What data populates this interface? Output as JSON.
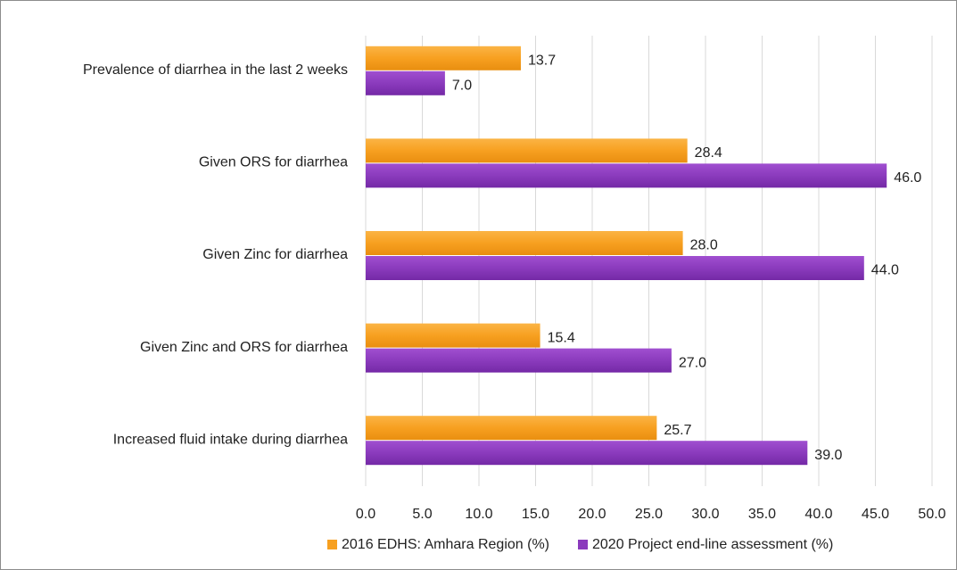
{
  "chart_data": {
    "type": "bar",
    "orientation": "horizontal",
    "categories": [
      "Prevalence of diarrhea in the last 2 weeks",
      "Given ORS for diarrhea",
      "Given Zinc for diarrhea",
      "Given Zinc and ORS for diarrhea",
      "Increased fluid intake during diarrhea"
    ],
    "series": [
      {
        "name": "2016 EDHS: Amhara Region (%)",
        "color": "#f7a020",
        "values": [
          13.7,
          28.4,
          28.0,
          15.4,
          25.7
        ],
        "value_labels": [
          "13.7",
          "28.4",
          "28.0",
          "15.4",
          "25.7"
        ]
      },
      {
        "name": "2020 Project end-line assessment (%)",
        "color": "#8b3bbd",
        "values": [
          7.0,
          46.0,
          44.0,
          27.0,
          39.0
        ],
        "value_labels": [
          "7.0",
          "46.0",
          "44.0",
          "27.0",
          "39.0"
        ]
      }
    ],
    "xlim": [
      0,
      50
    ],
    "xticks": [
      {
        "value": 0,
        "label": "0.0"
      },
      {
        "value": 5,
        "label": "5.0"
      },
      {
        "value": 10,
        "label": "10.0"
      },
      {
        "value": 15,
        "label": "15.0"
      },
      {
        "value": 20,
        "label": "20.0"
      },
      {
        "value": 25,
        "label": "25.0"
      },
      {
        "value": 30,
        "label": "30.0"
      },
      {
        "value": 35,
        "label": "35.0"
      },
      {
        "value": 40,
        "label": "40.0"
      },
      {
        "value": 45,
        "label": "45.0"
      },
      {
        "value": 50,
        "label": "50.0"
      }
    ],
    "grid": true,
    "legend": "bottom"
  }
}
